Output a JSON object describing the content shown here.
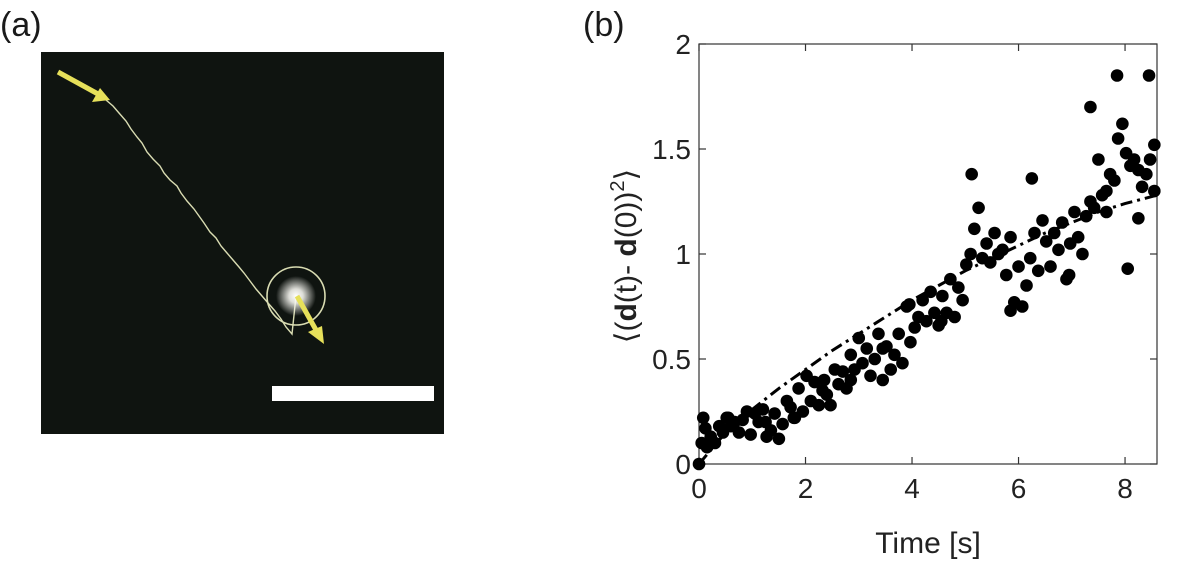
{
  "panels": {
    "a": {
      "label": "(a)"
    },
    "b": {
      "label": "(b)"
    }
  },
  "colors": {
    "image_background": "#0f1410",
    "trajectory": "#d9dcb2",
    "arrow": "#e6e05a",
    "scale_bar": "#ffffff",
    "markers": "#000000"
  },
  "chart_data": {
    "type": "scatter",
    "xlabel": "Time [s]",
    "ylabel_parts": {
      "open": "⟨(",
      "d1": "d",
      "t1": "(t)- ",
      "d2": "d",
      "t2": "(0))",
      "sup": "2",
      "close": "⟩"
    },
    "xlim": [
      0,
      8.6
    ],
    "ylim": [
      0,
      2
    ],
    "xticks": [
      0,
      2,
      4,
      6,
      8
    ],
    "yticks": [
      0,
      0.5,
      1,
      1.5,
      2
    ],
    "xtick_labels": [
      "0",
      "2",
      "4",
      "6",
      "8"
    ],
    "ytick_labels": [
      "0",
      "0.5",
      "1",
      "1.5",
      "2"
    ],
    "grid": false,
    "series": [
      {
        "kind": "points",
        "x": [
          0.0,
          0.08,
          0.15,
          0.22,
          0.3,
          0.38,
          0.45,
          0.52,
          0.6,
          0.67,
          0.75,
          0.82,
          0.9,
          0.97,
          1.05,
          1.12,
          1.2,
          1.27,
          1.35,
          1.42,
          1.5,
          1.57,
          1.65,
          1.72,
          1.8,
          1.87,
          1.95,
          2.02,
          2.1,
          2.17,
          2.25,
          2.32,
          2.4,
          2.47,
          2.55,
          2.62,
          2.7,
          2.77,
          2.85,
          2.92,
          3.0,
          3.07,
          3.15,
          3.22,
          3.3,
          3.37,
          3.45,
          3.52,
          3.6,
          3.67,
          3.75,
          3.82,
          3.9,
          3.97,
          4.05,
          4.12,
          4.2,
          4.27,
          4.35,
          4.42,
          4.5,
          4.57,
          4.65,
          4.72,
          4.8,
          4.87,
          4.95,
          5.02,
          5.1,
          5.17,
          5.25,
          5.32,
          5.4,
          5.47,
          5.55,
          5.62,
          5.7,
          5.77,
          5.85,
          5.92,
          6.0,
          6.07,
          6.15,
          6.22,
          6.3,
          6.37,
          6.45,
          6.52,
          6.6,
          6.67,
          6.75,
          6.82,
          6.9,
          6.97,
          7.05,
          7.12,
          7.2,
          7.27,
          7.35,
          7.42,
          7.5,
          7.57,
          7.65,
          7.72,
          7.8,
          7.87,
          7.95,
          8.02,
          8.1,
          8.17,
          8.25,
          8.32,
          8.4,
          8.47,
          8.55,
          0.05,
          0.12,
          0.55,
          1.25,
          2.35,
          3.45,
          4.55,
          5.85,
          6.95,
          8.05,
          8.55,
          1.78,
          2.85,
          3.95,
          5.12,
          6.25,
          7.35,
          7.65,
          7.85,
          8.25,
          8.45
        ],
        "y": [
          0.0,
          0.22,
          0.08,
          0.13,
          0.1,
          0.18,
          0.15,
          0.22,
          0.18,
          0.2,
          0.15,
          0.21,
          0.25,
          0.14,
          0.24,
          0.2,
          0.26,
          0.13,
          0.16,
          0.24,
          0.12,
          0.19,
          0.3,
          0.27,
          0.22,
          0.36,
          0.25,
          0.42,
          0.3,
          0.39,
          0.28,
          0.35,
          0.33,
          0.28,
          0.45,
          0.38,
          0.44,
          0.36,
          0.52,
          0.45,
          0.6,
          0.48,
          0.55,
          0.42,
          0.5,
          0.62,
          0.4,
          0.56,
          0.45,
          0.52,
          0.62,
          0.48,
          0.75,
          0.58,
          0.65,
          0.7,
          0.78,
          0.68,
          0.82,
          0.72,
          0.66,
          0.8,
          0.72,
          0.88,
          0.7,
          0.84,
          0.78,
          0.95,
          1.0,
          1.12,
          1.22,
          0.98,
          1.05,
          0.96,
          1.1,
          1.0,
          1.02,
          0.9,
          1.08,
          0.77,
          0.94,
          0.75,
          0.85,
          0.98,
          1.1,
          0.92,
          1.16,
          1.06,
          0.94,
          1.1,
          1.02,
          1.15,
          0.88,
          1.05,
          1.2,
          1.08,
          1.0,
          1.18,
          1.25,
          1.22,
          1.45,
          1.28,
          1.3,
          1.38,
          1.35,
          1.55,
          1.62,
          1.48,
          1.42,
          1.45,
          1.4,
          1.32,
          1.38,
          1.45,
          1.52,
          0.1,
          0.17,
          0.22,
          0.2,
          0.4,
          0.55,
          0.68,
          0.73,
          0.9,
          0.93,
          1.3,
          0.22,
          0.4,
          0.76,
          1.38,
          1.36,
          1.7,
          1.2,
          1.85,
          1.17,
          1.85
        ]
      },
      {
        "kind": "fit",
        "x": [
          0,
          0.5,
          1,
          1.5,
          2,
          2.5,
          3,
          3.5,
          4,
          4.5,
          5,
          5.5,
          6,
          6.5,
          7,
          7.5,
          8,
          8.6
        ],
        "y": [
          0,
          0.15,
          0.26,
          0.36,
          0.45,
          0.54,
          0.62,
          0.7,
          0.78,
          0.85,
          0.92,
          0.98,
          1.04,
          1.1,
          1.15,
          1.2,
          1.24,
          1.28
        ]
      }
    ]
  }
}
